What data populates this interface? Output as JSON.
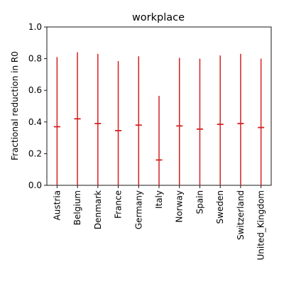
{
  "chart_data": {
    "type": "errorbar",
    "title": "workplace",
    "xlabel": "",
    "ylabel": "Fractional reduction in R0",
    "ylim": [
      0,
      1
    ],
    "yticks": [
      0.0,
      0.2,
      0.4,
      0.6,
      0.8,
      1.0
    ],
    "ytick_labels": [
      "0.0",
      "0.2",
      "0.4",
      "0.6",
      "0.8",
      "1.0"
    ],
    "grid": false,
    "color": "#d62020",
    "categories": [
      "Austria",
      "Belgium",
      "Denmark",
      "France",
      "Germany",
      "Italy",
      "Norway",
      "Spain",
      "Sweden",
      "Switzerland",
      "United_Kingdom"
    ],
    "series": [
      {
        "values": [
          0.37,
          0.42,
          0.39,
          0.345,
          0.38,
          0.16,
          0.375,
          0.355,
          0.385,
          0.39,
          0.365
        ],
        "lower": [
          0.0,
          0.0,
          0.0,
          0.0,
          0.0,
          0.0,
          0.0,
          0.0,
          0.0,
          0.0,
          0.0
        ],
        "upper": [
          0.81,
          0.84,
          0.83,
          0.785,
          0.815,
          0.565,
          0.805,
          0.8,
          0.82,
          0.83,
          0.8
        ]
      }
    ]
  }
}
